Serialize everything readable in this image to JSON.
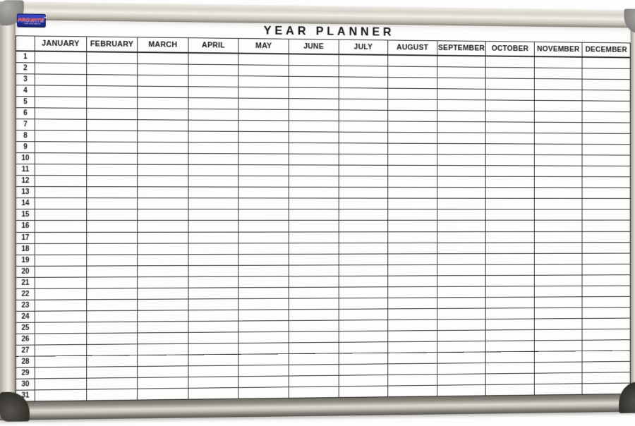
{
  "planner": {
    "title": "YEAR PLANNER",
    "logo": {
      "brand": "PROWITE",
      "trademark": "™",
      "subtitle": "WHITEBOARDS"
    },
    "months": [
      "JANUARY",
      "FEBRUARY",
      "MARCH",
      "APRIL",
      "MAY",
      "JUNE",
      "JULY",
      "AUGUST",
      "SEPTEMBER",
      "OCTOBER",
      "NOVEMBER",
      "DECEMBER"
    ],
    "days": [
      "1",
      "2",
      "3",
      "4",
      "5",
      "6",
      "7",
      "8",
      "9",
      "10",
      "11",
      "12",
      "13",
      "14",
      "15",
      "16",
      "17",
      "18",
      "19",
      "20",
      "21",
      "22",
      "23",
      "24",
      "25",
      "26",
      "27",
      "28",
      "29",
      "30",
      "31"
    ]
  },
  "colors": {
    "board": "#fdfdfc",
    "line": "#2e2e2e",
    "frame_light": "#f1eee8",
    "frame_mid": "#d3cfc6",
    "frame_dark": "#57554f",
    "cap_top_gray": "#8e8c88",
    "cap_bottom_dark": "#383631",
    "logo_blue": "#2433ae",
    "logo_red": "#d92b20"
  }
}
